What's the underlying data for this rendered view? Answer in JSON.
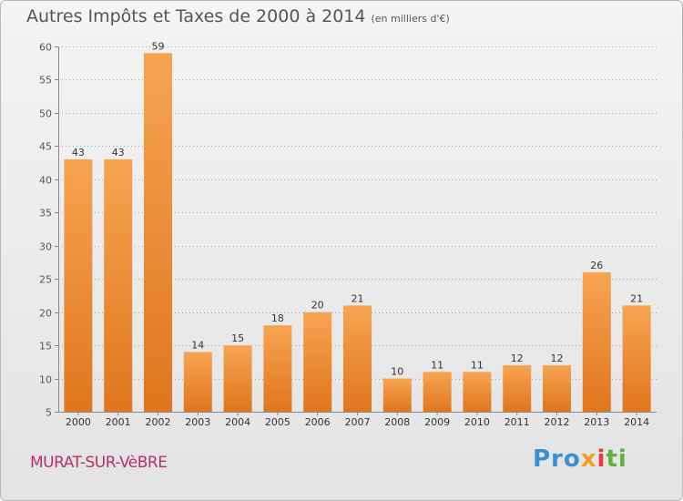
{
  "header": {
    "title": "Autres Impôts et Taxes de 2000 à 2014",
    "unit": "(en milliers d'€)"
  },
  "footer": {
    "commune": "MURAT-SUR-VèBRE",
    "logo": {
      "p1": "Pro",
      "p2": "x",
      "p3": "i",
      "p4": "ti"
    }
  },
  "colors": {
    "bar_top": "#f7a452",
    "bar_bottom": "#e0761d",
    "axis": "#888888",
    "grid": "#aaaaaa",
    "text": "#555555",
    "commune": "#b5316a"
  },
  "chart_data": {
    "type": "bar",
    "title": "Autres Impôts et Taxes de 2000 à 2014",
    "subtitle": "(en milliers d'€)",
    "categories": [
      "2000",
      "2001",
      "2002",
      "2003",
      "2004",
      "2005",
      "2006",
      "2007",
      "2008",
      "2009",
      "2010",
      "2011",
      "2012",
      "2013",
      "2014"
    ],
    "values": [
      43,
      43,
      59,
      14,
      15,
      18,
      20,
      21,
      10,
      11,
      11,
      12,
      12,
      26,
      21
    ],
    "ylim": [
      5,
      60
    ],
    "yticks": [
      5,
      10,
      15,
      20,
      25,
      30,
      35,
      40,
      45,
      50,
      55,
      60
    ],
    "grid": true,
    "data_labels": true
  }
}
